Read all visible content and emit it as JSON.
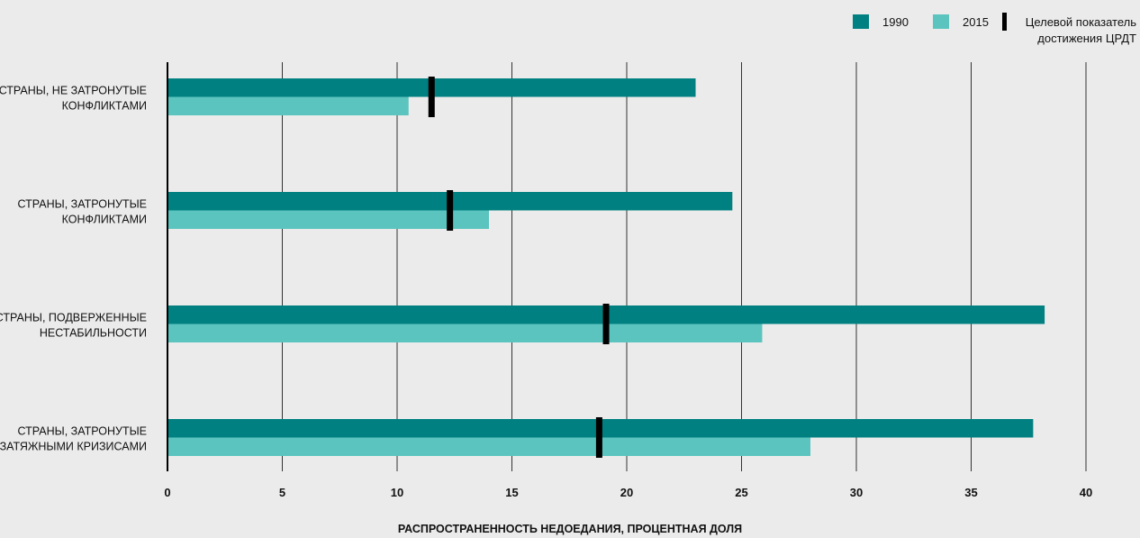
{
  "chart_data": {
    "type": "bar",
    "orientation": "horizontal",
    "categories": [
      [
        "СТРАНЫ, НЕ ЗАТРОНУТЫЕ",
        "КОНФЛИКТАМИ"
      ],
      [
        "СТРАНЫ, ЗАТРОНУТЫЕ",
        "КОНФЛИКТАМИ"
      ],
      [
        "СТРАНЫ, ПОДВЕРЖЕННЫЕ",
        "НЕСТАБИЛЬНОСТИ"
      ],
      [
        "СТРАНЫ, ЗАТРОНУТЫЕ",
        "ЗАТЯЖНЫМИ КРИЗИСАМИ"
      ]
    ],
    "series": [
      {
        "name": "1990",
        "color": "#008080",
        "values": [
          23.0,
          24.6,
          38.2,
          37.7
        ]
      },
      {
        "name": "2015",
        "color": "#5bc4bf",
        "values": [
          10.5,
          14.0,
          25.9,
          28.0
        ]
      }
    ],
    "target": {
      "name": [
        "Целевой показатель",
        "достижения ЦРДТ"
      ],
      "color": "#000000",
      "values": [
        11.5,
        12.3,
        19.1,
        18.8
      ]
    },
    "xlim": [
      0,
      40
    ],
    "xticks": [
      0,
      5,
      10,
      15,
      20,
      25,
      30,
      35,
      40
    ],
    "xlabel": "РАСПРОСТРАНЕННОСТЬ НЕДОЕДАНИЯ, ПРОЦЕНТНАЯ ДОЛЯ",
    "ylabel": "",
    "title": "",
    "grid": "vertical",
    "legend_position": "top-right"
  }
}
